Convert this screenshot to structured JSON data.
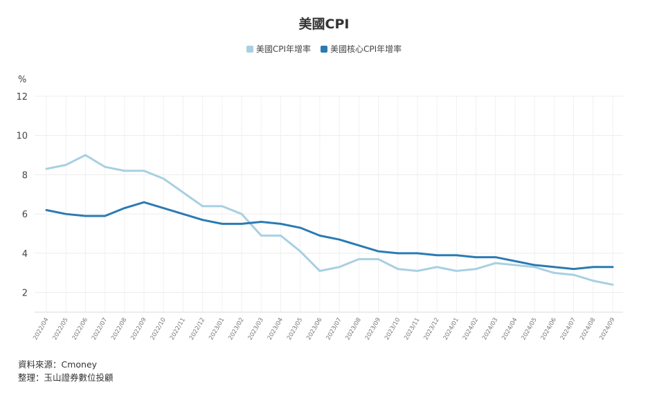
{
  "chart_data": {
    "type": "line",
    "title": "美國CPI",
    "ylabel": "%",
    "xlabel": "",
    "ylim": [
      1,
      12
    ],
    "yticks": [
      2,
      4,
      6,
      8,
      10,
      12
    ],
    "grid": true,
    "legend_position": "top-center",
    "x": [
      "2022/04",
      "2022/05",
      "2022/06",
      "2022/07",
      "2022/08",
      "2022/09",
      "2022/10",
      "2022/11",
      "2022/12",
      "2023/01",
      "2023/02",
      "2023/03",
      "2023/04",
      "2023/05",
      "2023/06",
      "2023/07",
      "2023/08",
      "2023/09",
      "2023/10",
      "2023/11",
      "2023/12",
      "2024/01",
      "2024/02",
      "2024/03",
      "2024/04",
      "2024/05",
      "2024/06",
      "2024/07",
      "2024/08",
      "2024/09"
    ],
    "series": [
      {
        "name": "美國CPI年增率",
        "color": "#a8cfe2",
        "values": [
          8.3,
          8.5,
          9.0,
          8.4,
          8.2,
          8.2,
          7.8,
          7.1,
          6.4,
          6.4,
          6.0,
          4.9,
          4.9,
          4.1,
          3.1,
          3.3,
          3.7,
          3.7,
          3.2,
          3.1,
          3.3,
          3.1,
          3.2,
          3.5,
          3.4,
          3.3,
          3.0,
          2.9,
          2.6,
          2.4
        ]
      },
      {
        "name": "美國核心CPI年增率",
        "color": "#2a7ab3",
        "values": [
          6.2,
          6.0,
          5.9,
          5.9,
          6.3,
          6.6,
          6.3,
          6.0,
          5.7,
          5.5,
          5.5,
          5.6,
          5.5,
          5.3,
          4.9,
          4.7,
          4.4,
          4.1,
          4.0,
          4.0,
          3.9,
          3.9,
          3.8,
          3.8,
          3.6,
          3.4,
          3.3,
          3.2,
          3.3,
          3.3
        ]
      }
    ]
  },
  "source": {
    "line1": "資料來源：Cmoney",
    "line2": "整理：玉山證券數位投顧"
  }
}
